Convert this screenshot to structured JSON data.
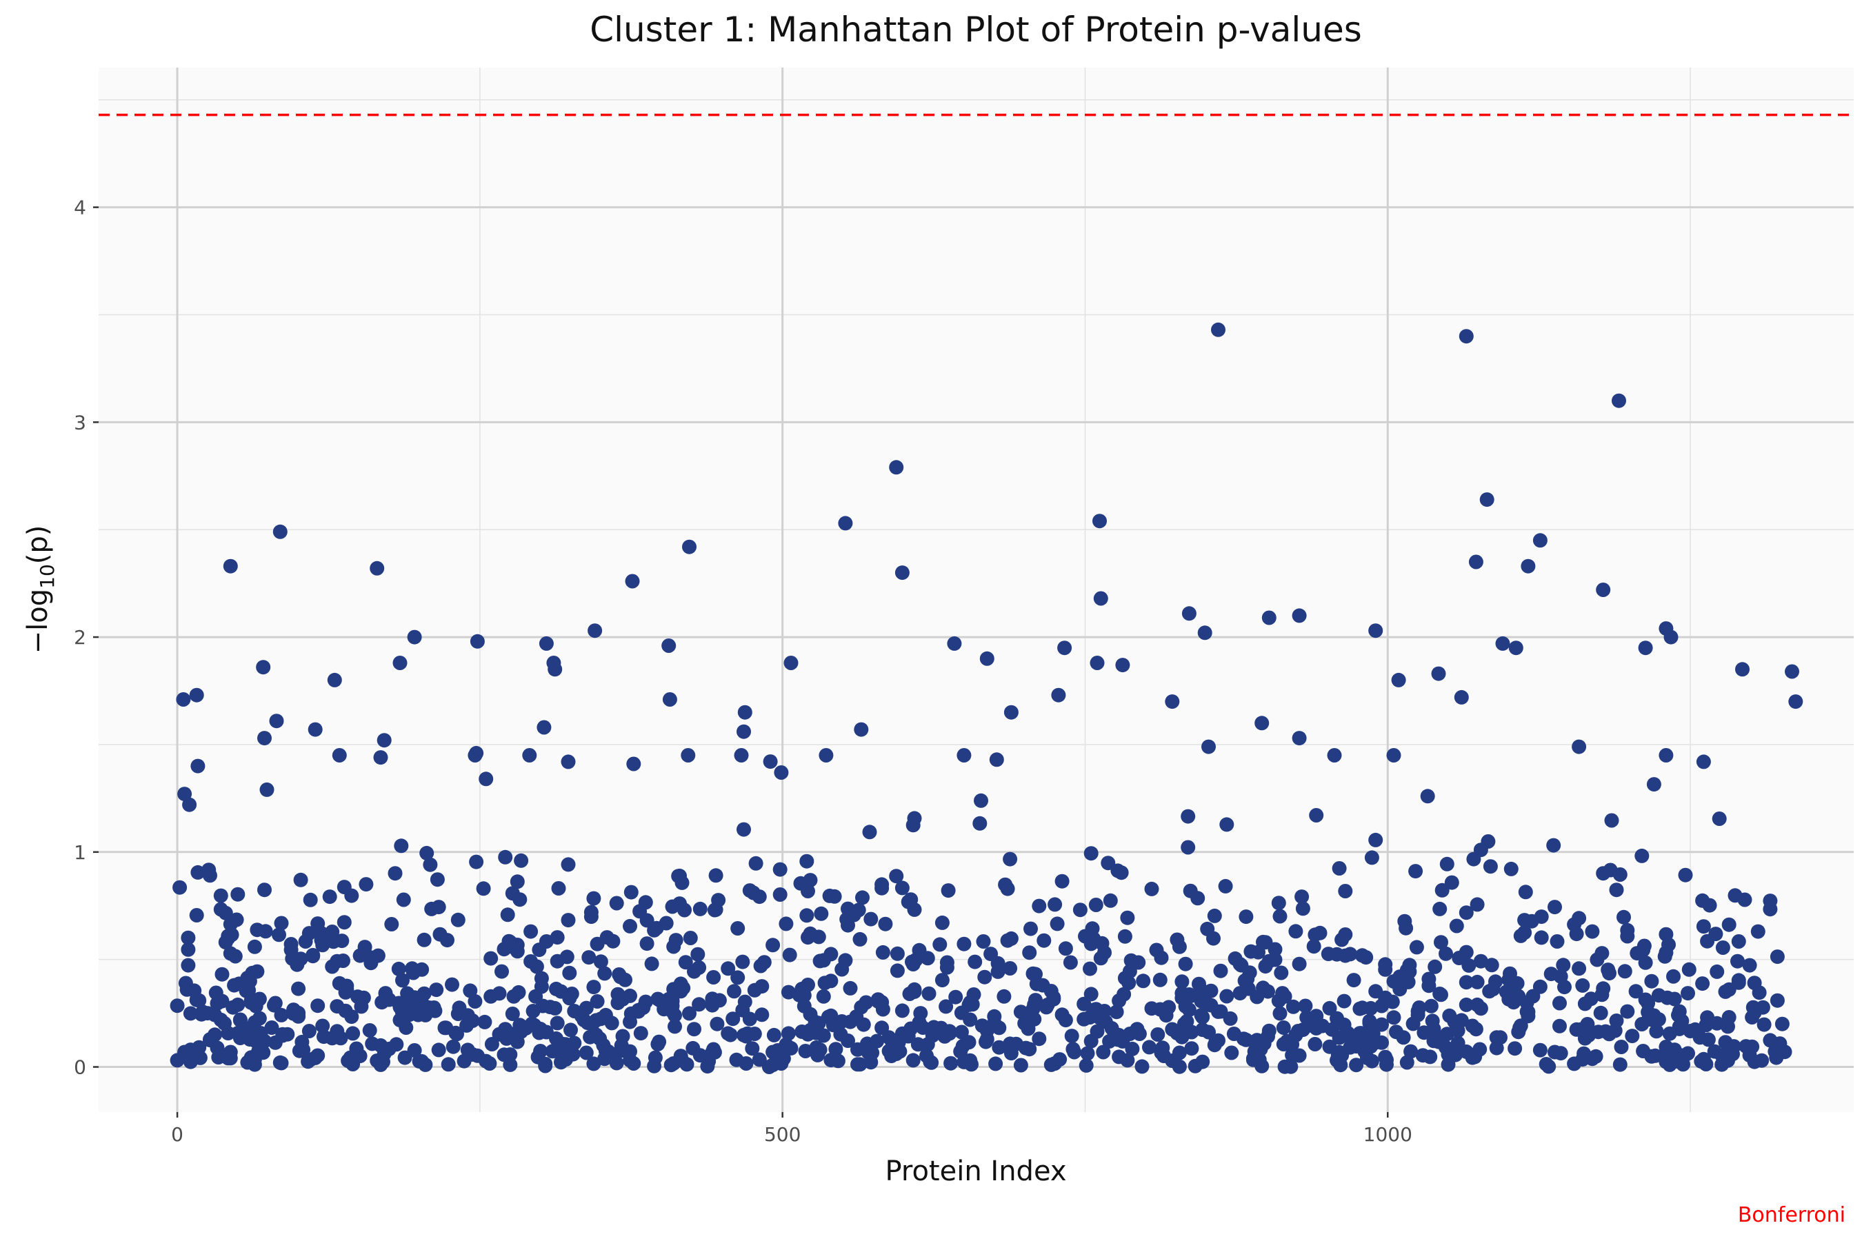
{
  "chart_data": {
    "type": "scatter",
    "title": "Cluster 1: Manhattan Plot of Protein p-values",
    "xlabel": "Protein Index",
    "ylabel_prefix": "−log",
    "ylabel_sub": "10",
    "ylabel_arg": "(p)",
    "caption": "Bonferroni",
    "xlim": [
      -65,
      1385
    ],
    "ylim": [
      -0.21,
      4.65
    ],
    "x_ticks": [
      0,
      500,
      1000
    ],
    "x_tick_labels": [
      "0",
      "500",
      "1000"
    ],
    "y_ticks": [
      0,
      1,
      2,
      3,
      4
    ],
    "y_tick_labels": [
      "0",
      "1",
      "2",
      "3",
      "4"
    ],
    "grid": true,
    "n_points": 1330,
    "threshold": {
      "name": "Bonferroni",
      "value": 4.43,
      "style": "dashed",
      "color": "#ff0000"
    },
    "point_color": "#233c84",
    "panel_background": "#fafafa",
    "highlighted_points": [
      {
        "x": 5,
        "y": 1.71
      },
      {
        "x": 6,
        "y": 1.27
      },
      {
        "x": 10,
        "y": 1.22
      },
      {
        "x": 16,
        "y": 1.73
      },
      {
        "x": 17,
        "y": 1.4
      },
      {
        "x": 44,
        "y": 2.33
      },
      {
        "x": 71,
        "y": 1.86
      },
      {
        "x": 72,
        "y": 1.53
      },
      {
        "x": 74,
        "y": 1.29
      },
      {
        "x": 82,
        "y": 1.61
      },
      {
        "x": 85,
        "y": 2.49
      },
      {
        "x": 114,
        "y": 1.57
      },
      {
        "x": 130,
        "y": 1.8
      },
      {
        "x": 165,
        "y": 2.32
      },
      {
        "x": 168,
        "y": 1.44
      },
      {
        "x": 171,
        "y": 1.52
      },
      {
        "x": 184,
        "y": 1.88
      },
      {
        "x": 196,
        "y": 2.0
      },
      {
        "x": 248,
        "y": 1.98
      },
      {
        "x": 247,
        "y": 1.46
      },
      {
        "x": 255,
        "y": 1.34
      },
      {
        "x": 305,
        "y": 1.97
      },
      {
        "x": 303,
        "y": 1.58
      },
      {
        "x": 312,
        "y": 1.85
      },
      {
        "x": 311,
        "y": 1.88
      },
      {
        "x": 345,
        "y": 2.03
      },
      {
        "x": 376,
        "y": 2.26
      },
      {
        "x": 377,
        "y": 1.41
      },
      {
        "x": 406,
        "y": 1.96
      },
      {
        "x": 407,
        "y": 1.71
      },
      {
        "x": 423,
        "y": 2.42
      },
      {
        "x": 552,
        "y": 2.53
      },
      {
        "x": 469,
        "y": 1.65
      },
      {
        "x": 468,
        "y": 1.56
      },
      {
        "x": 507,
        "y": 1.88
      },
      {
        "x": 499,
        "y": 1.37
      },
      {
        "x": 565,
        "y": 1.57
      },
      {
        "x": 594,
        "y": 2.79
      },
      {
        "x": 599,
        "y": 2.3
      },
      {
        "x": 642,
        "y": 1.97
      },
      {
        "x": 669,
        "y": 1.9
      },
      {
        "x": 689,
        "y": 1.65
      },
      {
        "x": 677,
        "y": 1.43
      },
      {
        "x": 733,
        "y": 1.95
      },
      {
        "x": 728,
        "y": 1.73
      },
      {
        "x": 762,
        "y": 2.54
      },
      {
        "x": 763,
        "y": 2.18
      },
      {
        "x": 760,
        "y": 1.88
      },
      {
        "x": 781,
        "y": 1.87
      },
      {
        "x": 860,
        "y": 3.43
      },
      {
        "x": 836,
        "y": 2.11
      },
      {
        "x": 849,
        "y": 2.02
      },
      {
        "x": 822,
        "y": 1.7
      },
      {
        "x": 852,
        "y": 1.49
      },
      {
        "x": 902,
        "y": 2.09
      },
      {
        "x": 927,
        "y": 2.1
      },
      {
        "x": 896,
        "y": 1.6
      },
      {
        "x": 927,
        "y": 1.53
      },
      {
        "x": 990,
        "y": 2.03
      },
      {
        "x": 1005,
        "y": 1.45
      },
      {
        "x": 1009,
        "y": 1.8
      },
      {
        "x": 1042,
        "y": 1.83
      },
      {
        "x": 1065,
        "y": 3.4
      },
      {
        "x": 1082,
        "y": 2.64
      },
      {
        "x": 1073,
        "y": 2.35
      },
      {
        "x": 1061,
        "y": 1.72
      },
      {
        "x": 1095,
        "y": 1.97
      },
      {
        "x": 1106,
        "y": 1.95
      },
      {
        "x": 1126,
        "y": 2.45
      },
      {
        "x": 1116,
        "y": 2.33
      },
      {
        "x": 1191,
        "y": 3.1
      },
      {
        "x": 1178,
        "y": 2.22
      },
      {
        "x": 1213,
        "y": 1.95
      },
      {
        "x": 1230,
        "y": 2.04
      },
      {
        "x": 1234,
        "y": 2.0
      },
      {
        "x": 1293,
        "y": 1.85
      },
      {
        "x": 1334,
        "y": 1.84
      },
      {
        "x": 1337,
        "y": 1.7
      },
      {
        "x": 1158,
        "y": 1.49
      },
      {
        "x": 1261,
        "y": 1.42
      }
    ]
  }
}
